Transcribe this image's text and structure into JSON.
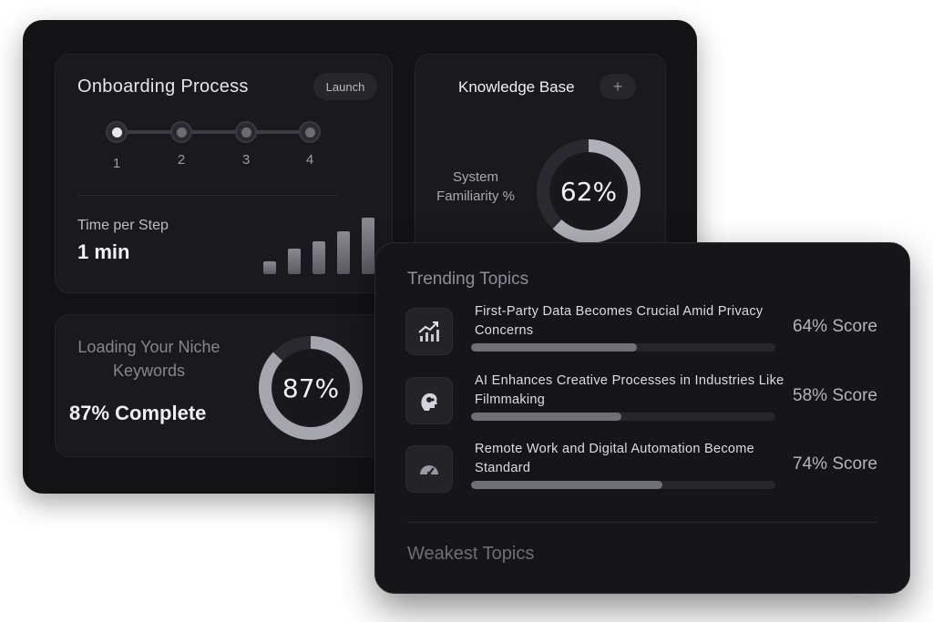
{
  "onboarding": {
    "title": "Onboarding Process",
    "launch_label": "Launch",
    "steps": [
      "1",
      "2",
      "3",
      "4"
    ],
    "active_step": 1,
    "time_label": "Time per Step",
    "time_value": "1 min"
  },
  "knowledge_base": {
    "title": "Knowledge Base",
    "add_icon": "plus-icon",
    "metric_label": "System Familiarity %",
    "percent_text": "62%",
    "percent_value": 62
  },
  "loading": {
    "title": "Loading Your Niche Keywords",
    "status": "87% Complete",
    "percent_text": "87%",
    "percent_value": 87
  },
  "trending": {
    "title": "Trending Topics",
    "topics": [
      {
        "text": "First-Party Data Becomes Crucial Amid Privacy Concerns",
        "score": "64% Score",
        "value": 64,
        "icon": "trending-up-icon"
      },
      {
        "text": "AI Enhances Creative Processes in Industries Like Filmmaking",
        "score": "58% Score",
        "value": 58,
        "icon": "ai-head-icon"
      },
      {
        "text": "Remote Work and Digital Automation Become Standard",
        "score": "74% Score",
        "value": 74,
        "icon": "speed-gauge-icon"
      }
    ]
  },
  "weakest": {
    "title": "Weakest Topics"
  },
  "colors": {
    "panel": "#131316",
    "card": "#1a1a1e",
    "ring_track": "#2a2a30",
    "ring_fill": "#bdbdc4",
    "text_primary": "#f0f0f3"
  }
}
